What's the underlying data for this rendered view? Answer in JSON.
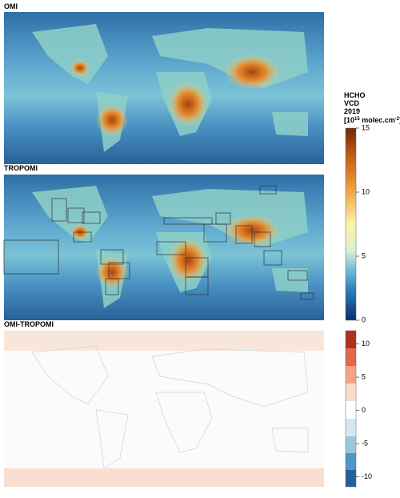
{
  "panels": [
    {
      "title": "OMI"
    },
    {
      "title": "TROPOMI"
    },
    {
      "title": "OMI-TROPOMI"
    }
  ],
  "colorbar_label": {
    "lines": [
      "HCHO",
      "VCD",
      "2019"
    ],
    "unit_parts": [
      "[10",
      "15",
      " molec.cm",
      "-2",
      "]"
    ]
  },
  "colorbars": [
    {
      "clim": [
        0,
        15
      ],
      "ticks": [
        0,
        5,
        10,
        15
      ]
    },
    {
      "clim": [
        -11.5,
        12
      ],
      "ticks": [
        10,
        5,
        0,
        -5,
        -10
      ]
    }
  ]
}
